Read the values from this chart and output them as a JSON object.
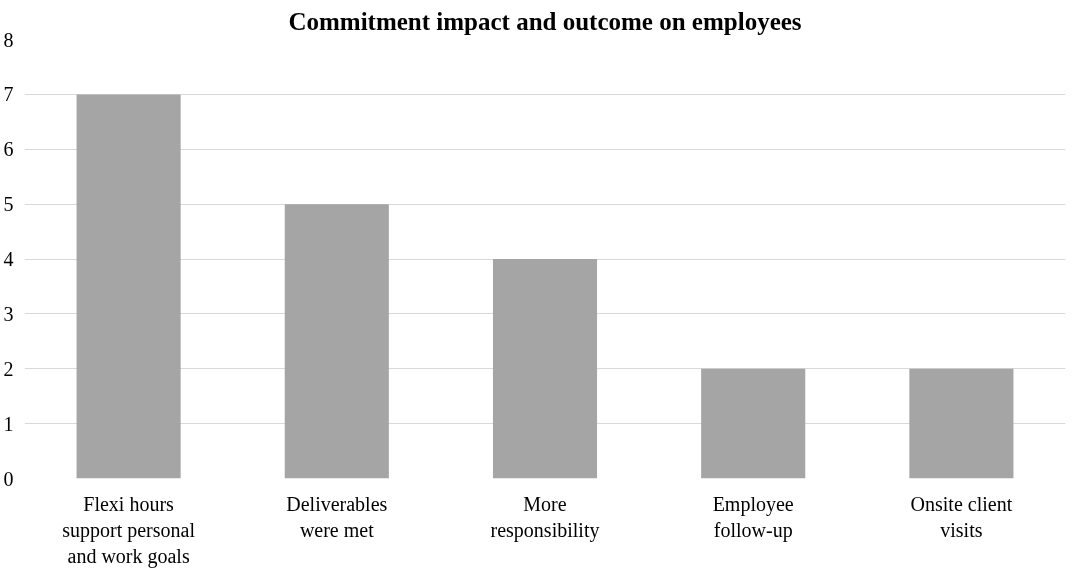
{
  "chart_data": {
    "type": "bar",
    "title": "Commitment impact and outcome on employees",
    "categories": [
      "Flexi hours support personal and work goals",
      "Deliverables were met",
      "More responsibility",
      "Employee follow-up",
      "Onsite client visits"
    ],
    "values": [
      7,
      5,
      4,
      2,
      2
    ],
    "color": "#a5a5a5",
    "ylim": [
      0,
      8
    ],
    "yticks": [
      0,
      1,
      2,
      3,
      4,
      5,
      6,
      7,
      8
    ],
    "grid": "y"
  }
}
